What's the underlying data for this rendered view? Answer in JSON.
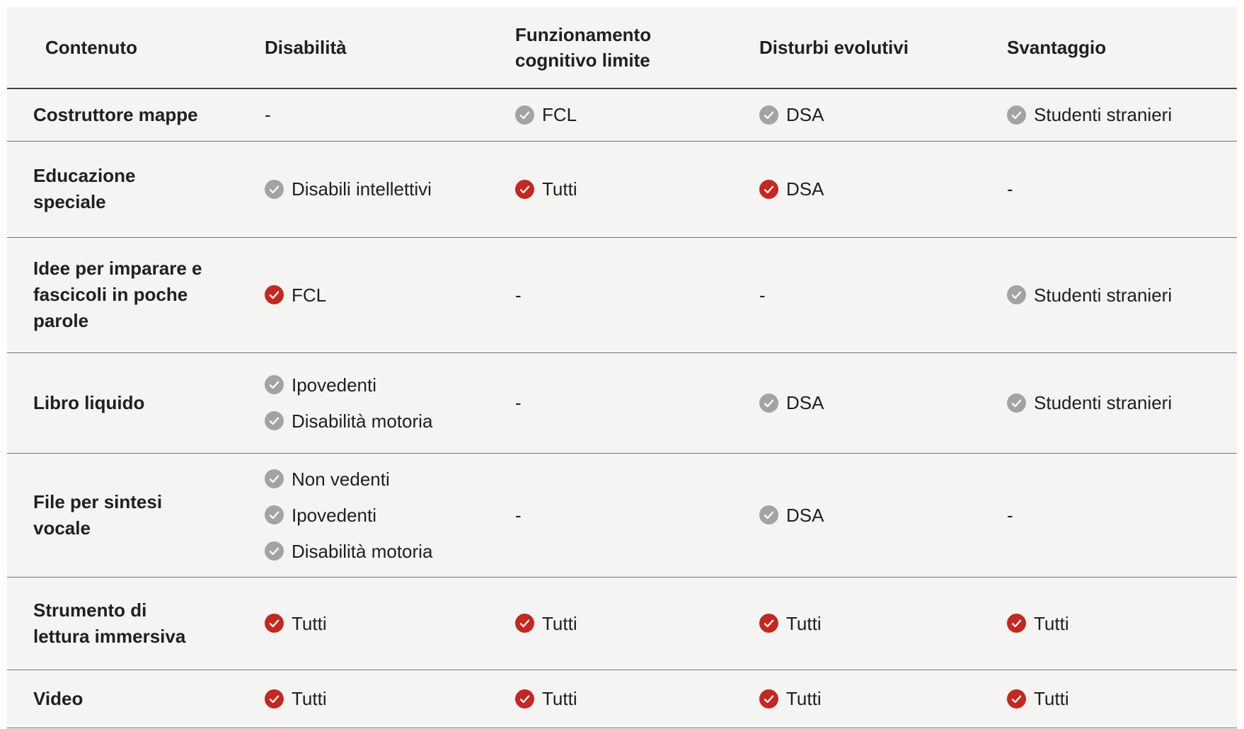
{
  "table": {
    "empty_marker": "-",
    "columns": [
      {
        "label": "Contenuto"
      },
      {
        "label": "Disabilità"
      },
      {
        "label": "Funzionamento\ncognitivo limite"
      },
      {
        "label": "Disturbi evolutivi"
      },
      {
        "label": "Svantaggio"
      }
    ],
    "rows": [
      {
        "title": "Costruttore mappe",
        "cells": [
          {
            "items": []
          },
          {
            "items": [
              {
                "label": "FCL",
                "variant": "gray"
              }
            ]
          },
          {
            "items": [
              {
                "label": "DSA",
                "variant": "gray"
              }
            ]
          },
          {
            "items": [
              {
                "label": "Studenti stranieri",
                "variant": "gray"
              }
            ]
          }
        ]
      },
      {
        "title": "Educazione\nspeciale",
        "cells": [
          {
            "items": [
              {
                "label": "Disabili intellettivi",
                "variant": "gray"
              }
            ]
          },
          {
            "items": [
              {
                "label": "Tutti",
                "variant": "red"
              }
            ]
          },
          {
            "items": [
              {
                "label": "DSA",
                "variant": "red"
              }
            ]
          },
          {
            "items": []
          }
        ]
      },
      {
        "title": "Idee per imparare e\nfascicoli in poche\nparole",
        "cells": [
          {
            "items": [
              {
                "label": "FCL",
                "variant": "red"
              }
            ]
          },
          {
            "items": []
          },
          {
            "items": []
          },
          {
            "items": [
              {
                "label": "Studenti stranieri",
                "variant": "gray"
              }
            ]
          }
        ]
      },
      {
        "title": "Libro liquido",
        "cells": [
          {
            "items": [
              {
                "label": "Ipovedenti",
                "variant": "gray"
              },
              {
                "label": "Disabilità motoria",
                "variant": "gray"
              }
            ]
          },
          {
            "items": []
          },
          {
            "items": [
              {
                "label": "DSA",
                "variant": "gray"
              }
            ]
          },
          {
            "items": [
              {
                "label": "Studenti stranieri",
                "variant": "gray"
              }
            ]
          }
        ]
      },
      {
        "title": "File per sintesi\nvocale",
        "cells": [
          {
            "items": [
              {
                "label": "Non vedenti",
                "variant": "gray"
              },
              {
                "label": "Ipovedenti",
                "variant": "gray"
              },
              {
                "label": "Disabilità motoria",
                "variant": "gray"
              }
            ]
          },
          {
            "items": []
          },
          {
            "items": [
              {
                "label": "DSA",
                "variant": "gray"
              }
            ]
          },
          {
            "items": []
          }
        ]
      },
      {
        "title": "Strumento di\nlettura immersiva",
        "cells": [
          {
            "items": [
              {
                "label": "Tutti",
                "variant": "red"
              }
            ]
          },
          {
            "items": [
              {
                "label": "Tutti",
                "variant": "red"
              }
            ]
          },
          {
            "items": [
              {
                "label": "Tutti",
                "variant": "red"
              }
            ]
          },
          {
            "items": [
              {
                "label": "Tutti",
                "variant": "red"
              }
            ]
          }
        ]
      },
      {
        "title": "Video",
        "cells": [
          {
            "items": [
              {
                "label": "Tutti",
                "variant": "red"
              }
            ]
          },
          {
            "items": [
              {
                "label": "Tutti",
                "variant": "red"
              }
            ]
          },
          {
            "items": [
              {
                "label": "Tutti",
                "variant": "red"
              }
            ]
          },
          {
            "items": [
              {
                "label": "Tutti",
                "variant": "red"
              }
            ]
          }
        ]
      }
    ]
  },
  "colors": {
    "badge_gray": "#a3a3a2",
    "badge_red": "#c52721",
    "check_stroke": "#ffffff",
    "table_background": "#f4f4f2",
    "text": "#21201e",
    "row_divider": "#73726e",
    "header_divider": "#454440"
  },
  "icons": {
    "check": "check-circle-icon"
  }
}
